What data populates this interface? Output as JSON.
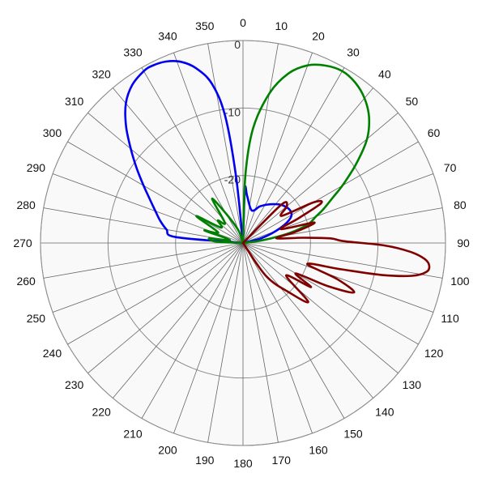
{
  "chart_data": {
    "type": "polar-line",
    "angle_direction": "clockwise",
    "angle_zero": "top",
    "angle_ticks": [
      0,
      10,
      20,
      30,
      40,
      50,
      60,
      70,
      80,
      90,
      100,
      110,
      120,
      130,
      140,
      150,
      160,
      170,
      180,
      190,
      200,
      210,
      220,
      230,
      240,
      250,
      260,
      270,
      280,
      290,
      300,
      310,
      320,
      330,
      340,
      350
    ],
    "angle_tick_labels": [
      "0",
      "10",
      "20",
      "30",
      "40",
      "50",
      "60",
      "70",
      "80",
      "90",
      "100",
      "110",
      "120",
      "130",
      "140",
      "150",
      "160",
      "170",
      "180",
      "190",
      "200",
      "210",
      "220",
      "230",
      "240",
      "250",
      "260",
      "270",
      "280",
      "290",
      "300",
      "310",
      "320",
      "330",
      "340",
      "350"
    ],
    "radial_ticks": [
      {
        "value": 0,
        "label": "0"
      },
      {
        "value": -10,
        "label": "-10"
      },
      {
        "value": -20,
        "label": "-20"
      }
    ],
    "rlim": [
      -30,
      0
    ],
    "grid": true,
    "series": [
      {
        "color": "#0000ee",
        "points": [
          [
            270,
            -30
          ],
          [
            275,
            -20
          ],
          [
            280,
            -18.5
          ],
          [
            285,
            -17.3
          ],
          [
            290,
            -16.2
          ],
          [
            295,
            -14.8
          ],
          [
            300,
            -13
          ],
          [
            305,
            -10.8
          ],
          [
            310,
            -8.3
          ],
          [
            315,
            -5.5
          ],
          [
            320,
            -3
          ],
          [
            325,
            -1.4
          ],
          [
            330,
            -0.6
          ],
          [
            333,
            -0.5
          ],
          [
            337,
            -0.8
          ],
          [
            341,
            -1.6
          ],
          [
            345,
            -3.2
          ],
          [
            349,
            -6
          ],
          [
            352,
            -11
          ],
          [
            354,
            -20
          ],
          [
            355,
            -30
          ]
        ],
        "extra_points": [
          [
            0,
            -30
          ],
          [
            2,
            -22
          ],
          [
            5,
            -23
          ],
          [
            15,
            -25
          ],
          [
            25,
            -24
          ],
          [
            35,
            -23
          ],
          [
            45,
            -22
          ],
          [
            55,
            -21.5
          ],
          [
            62,
            -22
          ],
          [
            68,
            -24
          ],
          [
            75,
            -27
          ],
          [
            85,
            -30
          ]
        ]
      },
      {
        "color": "#008000",
        "points": [
          [
            0,
            -30
          ],
          [
            2,
            -20
          ],
          [
            5,
            -13
          ],
          [
            10,
            -7.5
          ],
          [
            15,
            -4
          ],
          [
            20,
            -2
          ],
          [
            25,
            -1
          ],
          [
            30,
            -0.6
          ],
          [
            35,
            -1
          ],
          [
            40,
            -2
          ],
          [
            45,
            -3.6
          ],
          [
            50,
            -6
          ],
          [
            55,
            -9.5
          ],
          [
            60,
            -13
          ],
          [
            63,
            -15
          ],
          [
            67,
            -17
          ],
          [
            70,
            -18.5
          ],
          [
            74,
            -20
          ],
          [
            78,
            -23
          ],
          [
            82,
            -27
          ],
          [
            86,
            -30
          ]
        ],
        "left_points": [
          [
            270,
            -30
          ],
          [
            273,
            -26
          ],
          [
            278,
            -25
          ],
          [
            283,
            -28
          ],
          [
            288,
            -24
          ],
          [
            293,
            -26
          ],
          [
            300,
            -22
          ],
          [
            305,
            -26
          ],
          [
            312,
            -25
          ],
          [
            318,
            -26
          ],
          [
            325,
            -22
          ],
          [
            330,
            -25
          ],
          [
            340,
            -28
          ],
          [
            350,
            -30
          ]
        ]
      },
      {
        "color": "#800000",
        "points": [
          [
            20,
            -30
          ],
          [
            45,
            -22
          ],
          [
            50,
            -21.5
          ],
          [
            55,
            -23
          ],
          [
            60,
            -18
          ],
          [
            63,
            -17
          ],
          [
            66,
            -21
          ],
          [
            70,
            -24
          ],
          [
            74,
            -19
          ],
          [
            78,
            -22
          ],
          [
            82,
            -25
          ],
          [
            85,
            -21
          ],
          [
            87,
            -17
          ],
          [
            89,
            -15
          ],
          [
            91,
            -9
          ],
          [
            93,
            -5.2
          ],
          [
            95,
            -3
          ],
          [
            97,
            -2.2
          ],
          [
            99,
            -2.5
          ],
          [
            101,
            -4.5
          ],
          [
            103,
            -9
          ],
          [
            105,
            -15
          ],
          [
            108,
            -20
          ],
          [
            111,
            -15
          ],
          [
            114,
            -12
          ],
          [
            117,
            -16
          ],
          [
            120,
            -21
          ],
          [
            123,
            -18
          ],
          [
            127,
            -22
          ],
          [
            132,
            -17
          ],
          [
            137,
            -20
          ],
          [
            145,
            -24
          ],
          [
            160,
            -30
          ]
        ]
      }
    ]
  }
}
